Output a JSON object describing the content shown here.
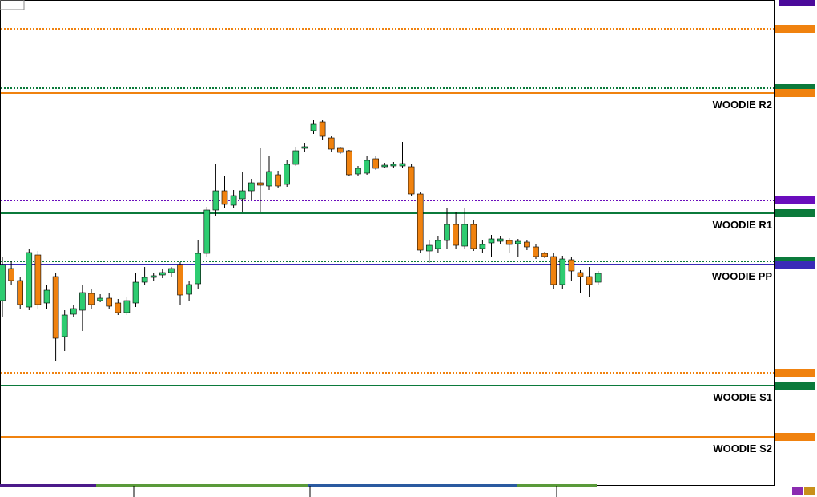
{
  "chart_data": {
    "type": "candlestick",
    "up_color": "#2ecc71",
    "down_color": "#f0820f",
    "ylim": [
      0,
      605
    ],
    "open": [
      230,
      270,
      255,
      222,
      287,
      227,
      260,
      185,
      213,
      218,
      239,
      230,
      233,
      227,
      215,
      227,
      253,
      259,
      262,
      265,
      275,
      238,
      251,
      289,
      343,
      367,
      349,
      357,
      367,
      377,
      373,
      387,
      375,
      400,
      420,
      442,
      453,
      433,
      420,
      417,
      388,
      389,
      407,
      397,
      398,
      398,
      397,
      363,
      292,
      295,
      305,
      325,
      298,
      325,
      295,
      302,
      304,
      305,
      301,
      303,
      297,
      289,
      285,
      250,
      281,
      265,
      260,
      253
    ],
    "close": [
      275,
      255,
      225,
      290,
      225,
      243,
      183,
      212,
      220,
      240,
      225,
      233,
      223,
      215,
      230,
      253,
      259,
      261,
      265,
      270,
      237,
      250,
      289,
      343,
      367,
      350,
      361,
      367,
      377,
      374,
      391,
      373,
      400,
      417,
      422,
      450,
      435,
      419,
      415,
      387,
      395,
      405,
      395,
      399,
      400,
      401,
      363,
      293,
      299,
      305,
      325,
      299,
      325,
      295,
      300,
      307,
      307,
      300,
      304,
      297,
      285,
      285,
      250,
      282,
      267,
      260,
      250,
      264
    ],
    "high": [
      285,
      280,
      260,
      295,
      292,
      250,
      265,
      218,
      225,
      250,
      245,
      238,
      240,
      232,
      235,
      265,
      272,
      265,
      270,
      272,
      278,
      255,
      305,
      347,
      400,
      385,
      368,
      390,
      382,
      420,
      410,
      392,
      405,
      422,
      427,
      455,
      455,
      435,
      422,
      418,
      398,
      410,
      410,
      402,
      403,
      428,
      400,
      365,
      305,
      310,
      345,
      340,
      345,
      330,
      305,
      312,
      310,
      308,
      307,
      306,
      300,
      291,
      290,
      286,
      285,
      268,
      272,
      267
    ],
    "low": [
      210,
      250,
      220,
      218,
      220,
      220,
      155,
      167,
      210,
      192,
      220,
      228,
      220,
      212,
      212,
      222,
      250,
      255,
      258,
      260,
      225,
      230,
      245,
      285,
      335,
      345,
      345,
      340,
      355,
      340,
      368,
      370,
      372,
      398,
      415,
      438,
      430,
      415,
      413,
      385,
      386,
      387,
      393,
      395,
      396,
      396,
      360,
      290,
      277,
      290,
      295,
      295,
      295,
      292,
      290,
      285,
      300,
      290,
      285,
      293,
      282,
      283,
      245,
      245,
      255,
      240,
      235,
      250
    ],
    "levels": [
      {
        "value": 569,
        "color": "#f0820f",
        "dashed": true
      },
      {
        "value": 495,
        "color": "#0b7a3b",
        "dashed": true
      },
      {
        "value": 489,
        "color": "#f0820f",
        "dashed": false,
        "label": "WOODIE R2"
      },
      {
        "value": 355,
        "color": "#6a0dbd",
        "dashed": true
      },
      {
        "value": 339,
        "color": "#0b7a3b",
        "dashed": false,
        "label": "WOODIE R1"
      },
      {
        "value": 279,
        "color": "#0b7a3b",
        "dashed": true
      },
      {
        "value": 275,
        "color": "#3a2bb8",
        "dashed": false,
        "label": "WOODIE PP"
      },
      {
        "value": 140,
        "color": "#f0820f",
        "dashed": true
      },
      {
        "value": 124,
        "color": "#0b7a3b",
        "dashed": false,
        "label": "WOODIE S1"
      },
      {
        "value": 60,
        "color": "#f0820f",
        "dashed": false,
        "label": "WOODIE S2"
      }
    ]
  }
}
